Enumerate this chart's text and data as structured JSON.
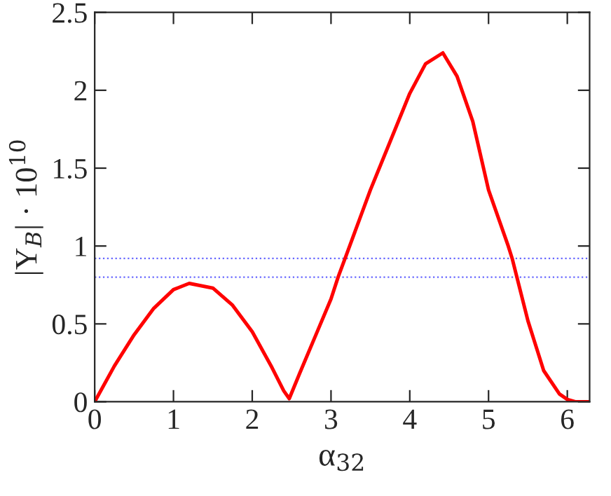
{
  "chart_data": {
    "type": "line",
    "xlabel": "α$_{32}$",
    "ylabel": "|Y$_{B}$| · 10$^{10}$",
    "series": [
      {
        "color": "#ff0000",
        "x": [
          0,
          0.25,
          0.5,
          0.75,
          1.0,
          1.2,
          1.5,
          1.75,
          2.0,
          2.25,
          2.4,
          2.47,
          2.6,
          2.8,
          3.0,
          3.09,
          3.2,
          3.5,
          3.75,
          4.0,
          4.2,
          4.42,
          4.6,
          4.8,
          5.0,
          5.25,
          5.3,
          5.36,
          5.5,
          5.7,
          5.9,
          6.0,
          6.1,
          6.2832
        ],
        "values": [
          0,
          0.23,
          0.43,
          0.6,
          0.72,
          0.76,
          0.73,
          0.62,
          0.45,
          0.22,
          0.07,
          0.02,
          0.18,
          0.42,
          0.66,
          0.8,
          0.95,
          1.36,
          1.67,
          1.98,
          2.17,
          2.24,
          2.09,
          1.8,
          1.36,
          1.0,
          0.92,
          0.8,
          0.52,
          0.2,
          0.05,
          0.015,
          0.0,
          0.0
        ]
      }
    ],
    "xlim": [
      0,
      6.2832
    ],
    "ylim": [
      0,
      2.5
    ],
    "xticks": [
      0,
      1,
      2,
      3,
      4,
      5,
      6
    ],
    "yticks": [
      0,
      0.5,
      1,
      1.5,
      2,
      2.5
    ],
    "ref_lines": [
      {
        "axis": "y",
        "value": 0.92,
        "color": "#6666ff",
        "line_style": "dotted"
      },
      {
        "axis": "y",
        "value": 0.8,
        "color": "#6666ff",
        "line_style": "dotted"
      }
    ],
    "grid": false,
    "legend": false,
    "marker": "none",
    "line_style": "solid"
  }
}
